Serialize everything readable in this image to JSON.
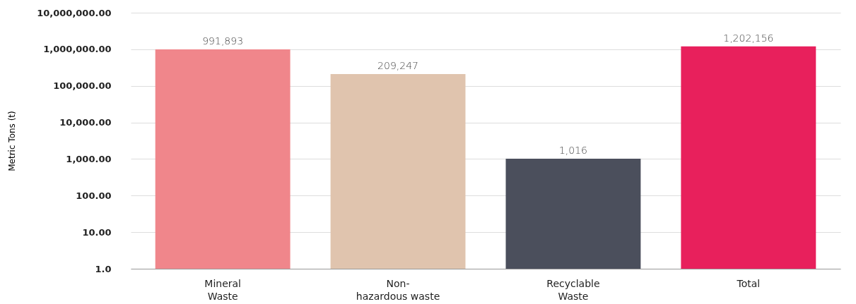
{
  "chart_data": {
    "type": "bar",
    "ylabel": "Metric Tons (t)",
    "categories": [
      "Mineral\nWaste",
      "Non-\nhazardous waste",
      "Recyclable\nWaste",
      "Total"
    ],
    "values": [
      991893,
      209247,
      1016,
      1202156
    ],
    "colors": [
      "#f0868b",
      "#e0c4ae",
      "#4b4f5c",
      "#e8205c"
    ],
    "log": true,
    "ylim": [
      1,
      10000000
    ],
    "yticks": [
      {
        "value": 1,
        "label": "1.0"
      },
      {
        "value": 10,
        "label": "10.00"
      },
      {
        "value": 100,
        "label": "100.00"
      },
      {
        "value": 1000,
        "label": "1,000.00"
      },
      {
        "value": 10000,
        "label": "10,000.00"
      },
      {
        "value": 100000,
        "label": "100,000.00"
      },
      {
        "value": 1000000,
        "label": "1,000,000.00"
      },
      {
        "value": 10000000,
        "label": "10,000,000.00"
      }
    ],
    "value_labels": [
      "991,893",
      "209,247",
      "1,016",
      "1,202,156"
    ],
    "grid": "y"
  }
}
